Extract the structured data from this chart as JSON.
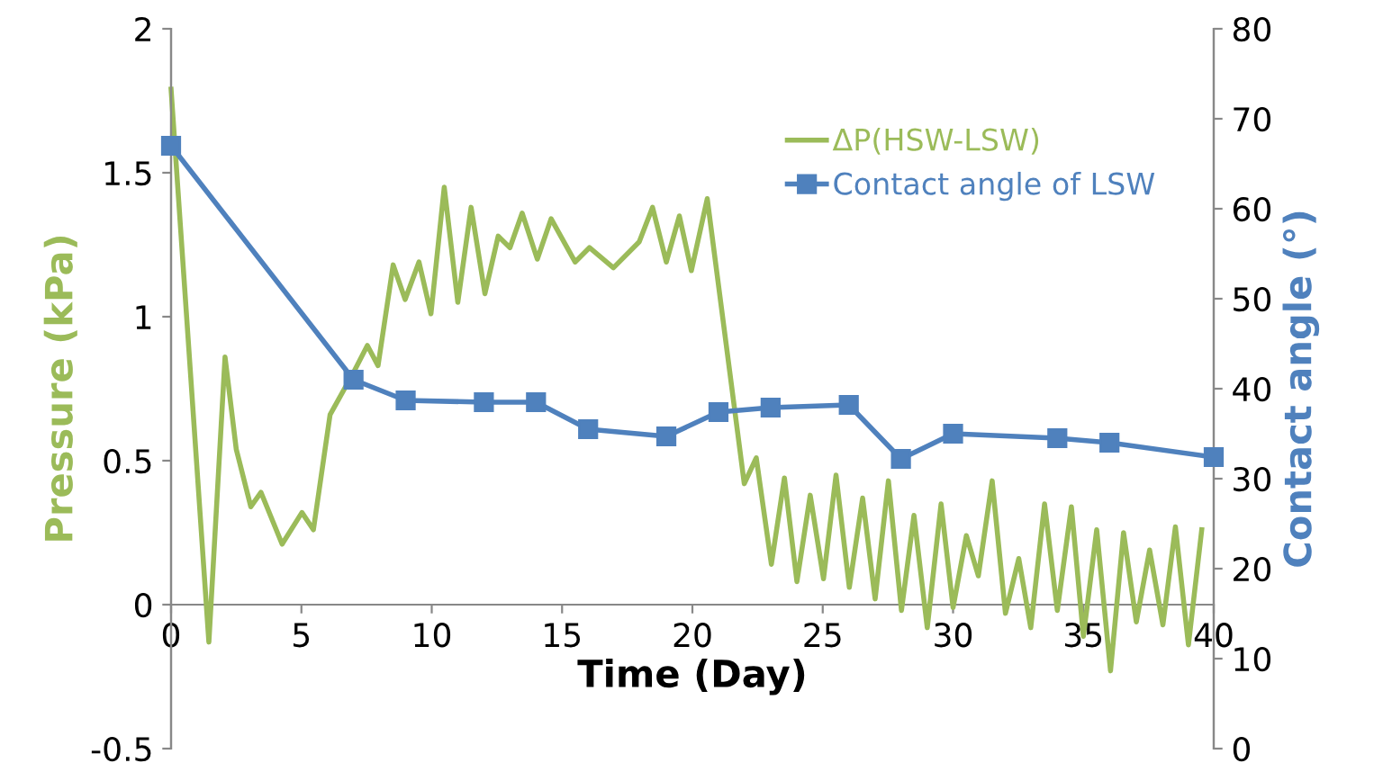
{
  "chart_data": {
    "type": "line",
    "xlabel": "Time (Day)",
    "ylabel": "Pressure (kPa)",
    "y2label": "Contact angle (°)",
    "xlim": [
      0,
      40
    ],
    "xticks": [
      0,
      5,
      10,
      15,
      20,
      25,
      30,
      35,
      40
    ],
    "ylim": [
      -0.5,
      2
    ],
    "yticks": [
      -0.5,
      0,
      0.5,
      1,
      1.5,
      2
    ],
    "y2lim": [
      0,
      80
    ],
    "y2ticks": [
      0,
      10,
      20,
      30,
      40,
      50,
      60,
      70,
      80
    ],
    "grid": false,
    "legend": "top right",
    "series": [
      {
        "name": "ΔP(HSW-LSW)",
        "color": "#9bbb59",
        "marker": "none",
        "x": [
          0,
          1.45,
          2.07,
          2.5,
          3.06,
          3.45,
          4.26,
          5.02,
          5.46,
          6.1,
          7.02,
          7.53,
          7.94,
          8.52,
          8.98,
          9.51,
          9.97,
          10.48,
          11.0,
          11.51,
          12.04,
          12.55,
          13.0,
          13.47,
          14.05,
          14.58,
          15.5,
          16.05,
          16.97,
          17.96,
          18.47,
          19.0,
          19.5,
          19.96,
          20.57,
          21.99,
          22.45,
          23.03,
          23.53,
          24.01,
          24.52,
          25.03,
          25.51,
          26.02,
          26.53,
          27.01,
          27.52,
          28.02,
          28.5,
          29.01,
          29.54,
          30.0,
          30.51,
          30.97,
          31.5,
          32.01,
          32.52,
          32.98,
          33.51,
          34.0,
          34.54,
          35.0,
          35.51,
          36.04,
          36.54,
          37.03,
          37.54,
          38.05,
          38.53,
          39.03,
          39.54
        ],
        "values": [
          1.79,
          -0.13,
          0.86,
          0.54,
          0.34,
          0.39,
          0.21,
          0.32,
          0.26,
          0.66,
          0.81,
          0.9,
          0.83,
          1.18,
          1.06,
          1.19,
          1.01,
          1.45,
          1.05,
          1.38,
          1.08,
          1.28,
          1.24,
          1.36,
          1.2,
          1.34,
          1.19,
          1.24,
          1.17,
          1.26,
          1.38,
          1.19,
          1.35,
          1.16,
          1.41,
          0.42,
          0.51,
          0.14,
          0.44,
          0.08,
          0.38,
          0.09,
          0.45,
          0.06,
          0.37,
          0.02,
          0.43,
          -0.02,
          0.31,
          -0.08,
          0.35,
          -0.01,
          0.24,
          0.1,
          0.43,
          -0.03,
          0.16,
          -0.08,
          0.35,
          -0.02,
          0.34,
          -0.11,
          0.26,
          -0.23,
          0.25,
          -0.06,
          0.19,
          -0.07,
          0.27,
          -0.14,
          0.26
        ]
      },
      {
        "name": "Contact angle of LSW",
        "color": "#4f81bd",
        "marker": "square",
        "axis": "y2",
        "x": [
          0,
          7,
          9,
          12,
          14,
          16,
          19,
          21,
          23,
          26,
          28,
          30,
          34,
          36,
          40
        ],
        "values": [
          67.0,
          41.0,
          38.7,
          38.5,
          38.5,
          35.5,
          34.7,
          37.4,
          37.9,
          38.2,
          32.2,
          35.0,
          34.5,
          34.0,
          32.4
        ]
      }
    ]
  }
}
